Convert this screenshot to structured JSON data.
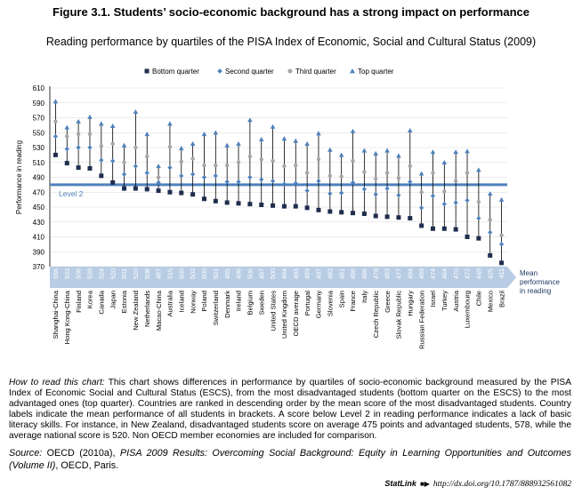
{
  "figure": {
    "title": "Figure 3.1. Students’ socio-economic background has a strong impact on performance",
    "subtitle": "Reading performance by quartiles of the PISA Index of Economic, Social and Cultural Status (2009)"
  },
  "note": {
    "lead": "How to read this chart:",
    "text": " This chart shows differences in performance by quartiles of socio-economic background measured by the PISA Index of Economic Social and Cultural Status (ESCS), from the most disadvantaged students (bottom quarter on the ESCS) to the most advantaged ones (top quarter). Countries are ranked in descending order by the mean score of the most disadvantaged students. Country labels indicate the mean performance of all students in brackets. A score below Level 2 in reading performance indicates a lack of basic literacy skills. For instance, in New Zealand, disadvantaged students score on average 475 points and advantaged students, 578, while the average national score is 520. Non OECD member economies are included for comparison."
  },
  "source": {
    "prefix": "Source:",
    "text1": " OECD (2010a), ",
    "italic": "PISA 2009 Results: Overcoming Social Background: Equity in Learning Opportunities and Outcomes (Volume II)",
    "text2": ", OECD, Paris."
  },
  "statlink": {
    "label": "StatLink",
    "url": "http://dx.doi.org/10.1787/888932561082"
  },
  "colors": {
    "bottom": "#1f2d4e",
    "second": "#4f81bd",
    "third": "#a6a6a6",
    "top": "#4f81bd",
    "level_line": "#4f81bd",
    "mean_band": "#b8cce4"
  },
  "chart_data": {
    "type": "scatter",
    "title": "Reading performance by quartiles of the PISA Index of Economic, Social and Cultural Status (2009)",
    "ylabel": "Performance in reading",
    "ylim": [
      370,
      610
    ],
    "yticks": [
      370,
      390,
      410,
      430,
      450,
      470,
      490,
      510,
      530,
      550,
      570,
      590,
      610
    ],
    "level_line": {
      "value": 480,
      "label": "Level 2"
    },
    "mean_axis_label": "Mean performance in reading",
    "legend": [
      "Bottom quarter",
      "Second quarter",
      "Third quarter",
      "Top quarter"
    ],
    "countries": [
      {
        "name": "Shanghai-China",
        "mean": "556",
        "bottom": 520,
        "second": 545,
        "third": 565,
        "top": 592
      },
      {
        "name": "Hong Kong-China",
        "mean": "533",
        "bottom": 509,
        "second": 528,
        "third": 545,
        "top": 557
      },
      {
        "name": "Finland",
        "mean": "536",
        "bottom": 503,
        "second": 530,
        "third": 548,
        "top": 565
      },
      {
        "name": "Korea",
        "mean": "539",
        "bottom": 502,
        "second": 530,
        "third": 548,
        "top": 571
      },
      {
        "name": "Canada",
        "mean": "524",
        "bottom": 492,
        "second": 513,
        "third": 532,
        "top": 562
      },
      {
        "name": "Japan",
        "mean": "520",
        "bottom": 483,
        "second": 512,
        "third": 535,
        "top": 559
      },
      {
        "name": "Estonia",
        "mean": "501",
        "bottom": 475,
        "second": 494,
        "third": 510,
        "top": 533
      },
      {
        "name": "New Zealand",
        "mean": "520",
        "bottom": 475,
        "second": 505,
        "third": 530,
        "top": 578
      },
      {
        "name": "Netherlands",
        "mean": "508",
        "bottom": 474,
        "second": 496,
        "third": 518,
        "top": 548
      },
      {
        "name": "Macao-China",
        "mean": "487",
        "bottom": 472,
        "second": 483,
        "third": 490,
        "top": 505
      },
      {
        "name": "Australia",
        "mean": "515",
        "bottom": 470,
        "second": 503,
        "third": 531,
        "top": 562
      },
      {
        "name": "Iceland",
        "mean": "500",
        "bottom": 469,
        "second": 492,
        "third": 511,
        "top": 529
      },
      {
        "name": "Norway",
        "mean": "503",
        "bottom": 467,
        "second": 494,
        "third": 515,
        "top": 535
      },
      {
        "name": "Poland",
        "mean": "500",
        "bottom": 461,
        "second": 490,
        "third": 506,
        "top": 548
      },
      {
        "name": "Switzerland",
        "mean": "501",
        "bottom": 458,
        "second": 492,
        "third": 506,
        "top": 550
      },
      {
        "name": "Denmark",
        "mean": "495",
        "bottom": 456,
        "second": 484,
        "third": 506,
        "top": 533
      },
      {
        "name": "Ireland",
        "mean": "496",
        "bottom": 455,
        "second": 484,
        "third": 510,
        "top": 535
      },
      {
        "name": "Belgium",
        "mean": "506",
        "bottom": 454,
        "second": 490,
        "third": 518,
        "top": 567
      },
      {
        "name": "Sweden",
        "mean": "497",
        "bottom": 453,
        "second": 487,
        "third": 514,
        "top": 541
      },
      {
        "name": "United States",
        "mean": "500",
        "bottom": 452,
        "second": 485,
        "third": 512,
        "top": 558
      },
      {
        "name": "United Kingdom",
        "mean": "494",
        "bottom": 451,
        "second": 481,
        "third": 505,
        "top": 542
      },
      {
        "name": "OECD average",
        "mean": "493",
        "bottom": 451,
        "second": 482,
        "third": 506,
        "top": 539
      },
      {
        "name": "Portugal",
        "mean": "489",
        "bottom": 449,
        "second": 472,
        "third": 496,
        "top": 535
      },
      {
        "name": "Germany",
        "mean": "497",
        "bottom": 446,
        "second": 485,
        "third": 514,
        "top": 549
      },
      {
        "name": "Slovenia",
        "mean": "483",
        "bottom": 444,
        "second": 468,
        "third": 492,
        "top": 527
      },
      {
        "name": "Spain",
        "mean": "481",
        "bottom": 443,
        "second": 469,
        "third": 491,
        "top": 520
      },
      {
        "name": "France",
        "mean": "496",
        "bottom": 442,
        "second": 483,
        "third": 512,
        "top": 552
      },
      {
        "name": "Italy",
        "mean": "486",
        "bottom": 441,
        "second": 474,
        "third": 497,
        "top": 526
      },
      {
        "name": "Czech Republic",
        "mean": "478",
        "bottom": 438,
        "second": 467,
        "third": 488,
        "top": 522
      },
      {
        "name": "Greece",
        "mean": "483",
        "bottom": 437,
        "second": 475,
        "third": 496,
        "top": 526
      },
      {
        "name": "Slovak Republic",
        "mean": "477",
        "bottom": 436,
        "second": 466,
        "third": 489,
        "top": 519
      },
      {
        "name": "Hungary",
        "mean": "494",
        "bottom": 435,
        "second": 484,
        "third": 505,
        "top": 553
      },
      {
        "name": "Russian Federation",
        "mean": "459",
        "bottom": 425,
        "second": 449,
        "third": 470,
        "top": 495
      },
      {
        "name": "Israel",
        "mean": "474",
        "bottom": 421,
        "second": 465,
        "third": 496,
        "top": 524
      },
      {
        "name": "Turkey",
        "mean": "464",
        "bottom": 421,
        "second": 454,
        "third": 471,
        "top": 510
      },
      {
        "name": "Austria",
        "mean": "470",
        "bottom": 420,
        "second": 456,
        "third": 485,
        "top": 524
      },
      {
        "name": "Luxembourg",
        "mean": "472",
        "bottom": 410,
        "second": 459,
        "third": 496,
        "top": 525
      },
      {
        "name": "Chile",
        "mean": "449",
        "bottom": 408,
        "second": 435,
        "third": 457,
        "top": 500
      },
      {
        "name": "Mexico",
        "mean": "425",
        "bottom": 385,
        "second": 416,
        "third": 433,
        "top": 468
      },
      {
        "name": "Brazil",
        "mean": "411",
        "bottom": 375,
        "second": 400,
        "third": 412,
        "top": 460
      }
    ]
  }
}
